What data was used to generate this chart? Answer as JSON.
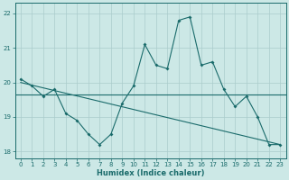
{
  "xlabel": "Humidex (Indice chaleur)",
  "bg_color": "#cce8e6",
  "line_color": "#1a6b6b",
  "grid_color": "#aacccc",
  "x_hours": [
    0,
    1,
    2,
    3,
    4,
    5,
    6,
    7,
    8,
    9,
    10,
    11,
    12,
    13,
    14,
    15,
    16,
    17,
    18,
    19,
    20,
    21,
    22,
    23
  ],
  "main_line": [
    20.1,
    19.9,
    19.6,
    19.8,
    19.1,
    18.9,
    18.5,
    18.2,
    18.5,
    19.4,
    19.9,
    21.1,
    20.5,
    20.4,
    21.8,
    21.9,
    20.5,
    20.6,
    19.8,
    19.3,
    19.6,
    19.0,
    18.2,
    18.2
  ],
  "flat_y": 19.65,
  "slope_line_x": [
    0,
    23
  ],
  "slope_line_y": [
    20.0,
    18.2
  ],
  "ylim": [
    17.8,
    22.3
  ],
  "xlim": [
    -0.5,
    23.5
  ],
  "yticks": [
    18,
    19,
    20,
    21,
    22
  ],
  "xticks": [
    0,
    1,
    2,
    3,
    4,
    5,
    6,
    7,
    8,
    9,
    10,
    11,
    12,
    13,
    14,
    15,
    16,
    17,
    18,
    19,
    20,
    21,
    22,
    23
  ]
}
